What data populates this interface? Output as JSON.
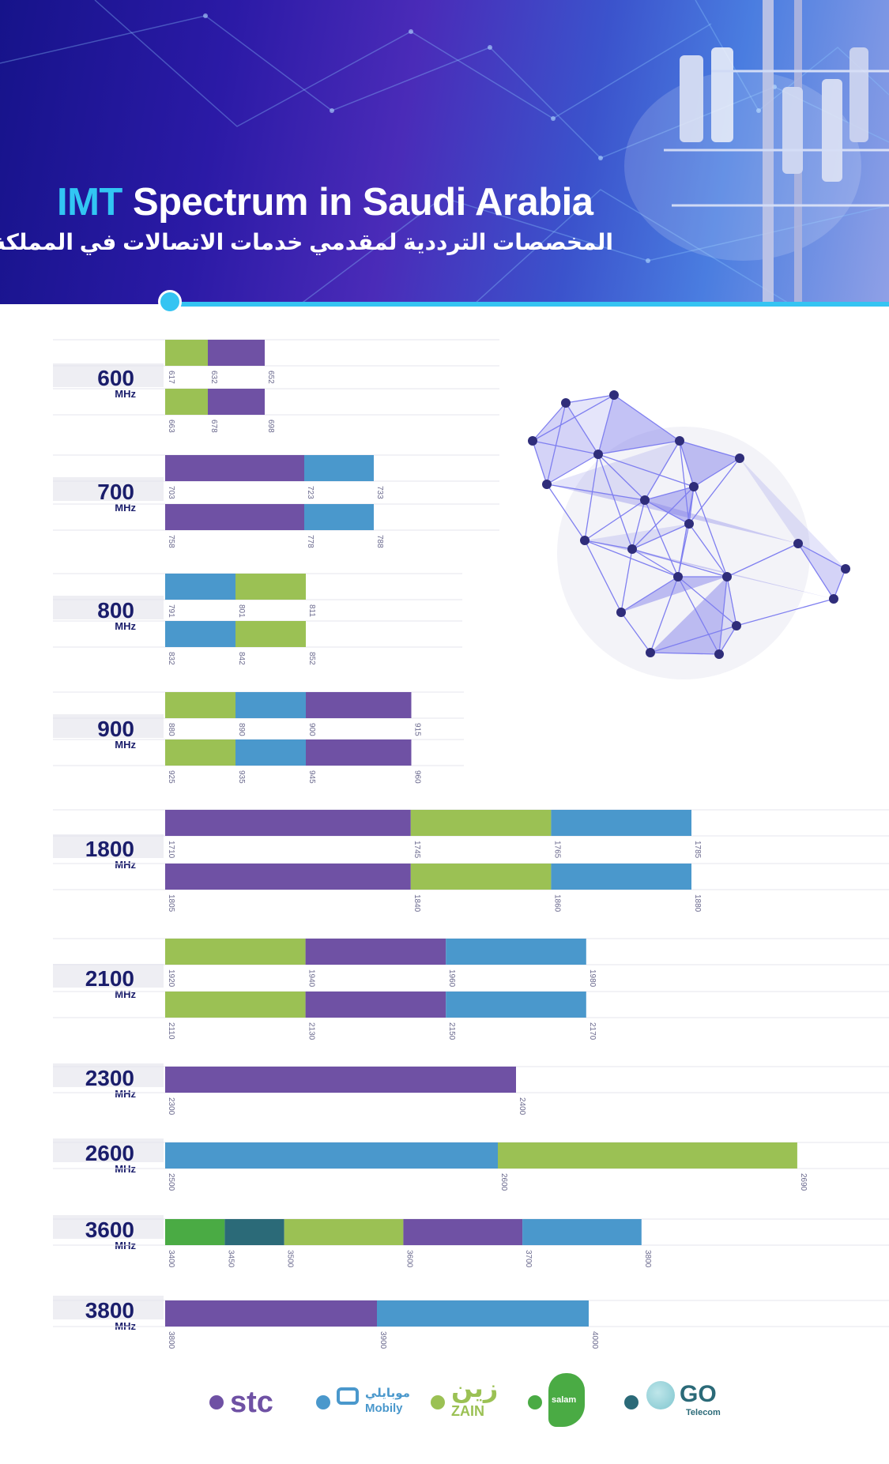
{
  "header": {
    "title_accent": "IMT",
    "title_rest": "Spectrum in Saudi Arabia",
    "subtitle": "المخصصات الترددية لمقدمي خدمات الاتصالات في المملكة"
  },
  "colors": {
    "stc": "#6f51a4",
    "mobily": "#4a98cc",
    "zain": "#9bc154",
    "salam": "#4aab44",
    "go": "#2b6a78",
    "label_navy": "#1a1d6b",
    "label_bg": "#eeeef3",
    "tick": "#6b6a8e"
  },
  "legend": [
    {
      "name": "stc",
      "text": "stc",
      "color": "#6f51a4"
    },
    {
      "name": "mobily",
      "text": "Mobily",
      "arabic": "موبايلي",
      "color": "#4a98cc"
    },
    {
      "name": "zain",
      "text": "ZAIN",
      "arabic": "زين",
      "color": "#9bc154"
    },
    {
      "name": "salam",
      "text": "salam",
      "color": "#4aab44"
    },
    {
      "name": "go",
      "text": "GO",
      "sub": "Telecom",
      "color": "#2b6a78"
    }
  ],
  "chart_data": {
    "type": "bar",
    "unit": "MHz",
    "bands": [
      {
        "label": "600",
        "unit": "MHz",
        "rows": [
          {
            "segments": [
              {
                "from": 617,
                "to": 632,
                "operator": "zain"
              },
              {
                "from": 632,
                "to": 652,
                "operator": "stc"
              }
            ],
            "ticks": [
              "617",
              "632",
              "652"
            ]
          },
          {
            "segments": [
              {
                "from": 663,
                "to": 678,
                "operator": "zain"
              },
              {
                "from": 678,
                "to": 698,
                "operator": "stc"
              }
            ],
            "ticks": [
              "663",
              "678",
              "698"
            ]
          }
        ]
      },
      {
        "label": "700",
        "unit": "MHz",
        "rows": [
          {
            "segments": [
              {
                "from": 703,
                "to": 723,
                "operator": "stc"
              },
              {
                "from": 723,
                "to": 733,
                "operator": "mobily"
              }
            ],
            "ticks": [
              "703",
              "723",
              "733"
            ]
          },
          {
            "segments": [
              {
                "from": 758,
                "to": 778,
                "operator": "stc"
              },
              {
                "from": 778,
                "to": 788,
                "operator": "mobily"
              }
            ],
            "ticks": [
              "758",
              "778",
              "788"
            ]
          }
        ]
      },
      {
        "label": "800",
        "unit": "MHz",
        "rows": [
          {
            "segments": [
              {
                "from": 791,
                "to": 801,
                "operator": "mobily"
              },
              {
                "from": 801,
                "to": 811,
                "operator": "zain"
              }
            ],
            "ticks": [
              "791",
              "801",
              "811"
            ]
          },
          {
            "segments": [
              {
                "from": 832,
                "to": 842,
                "operator": "mobily"
              },
              {
                "from": 842,
                "to": 852,
                "operator": "zain"
              }
            ],
            "ticks": [
              "832",
              "842",
              "852"
            ]
          }
        ]
      },
      {
        "label": "900",
        "unit": "MHz",
        "rows": [
          {
            "segments": [
              {
                "from": 880,
                "to": 890,
                "operator": "zain"
              },
              {
                "from": 890,
                "to": 900,
                "operator": "mobily"
              },
              {
                "from": 900,
                "to": 915,
                "operator": "stc"
              }
            ],
            "ticks": [
              "880",
              "890",
              "900",
              "915"
            ]
          },
          {
            "segments": [
              {
                "from": 925,
                "to": 935,
                "operator": "zain"
              },
              {
                "from": 935,
                "to": 945,
                "operator": "mobily"
              },
              {
                "from": 945,
                "to": 960,
                "operator": "stc"
              }
            ],
            "ticks": [
              "925",
              "935",
              "945",
              "960"
            ]
          }
        ]
      },
      {
        "label": "1800",
        "unit": "MHz",
        "rows": [
          {
            "segments": [
              {
                "from": 1710,
                "to": 1745,
                "operator": "stc"
              },
              {
                "from": 1745,
                "to": 1765,
                "operator": "zain"
              },
              {
                "from": 1765,
                "to": 1785,
                "operator": "mobily"
              }
            ],
            "ticks": [
              "1710",
              "1745",
              "1765",
              "1785"
            ]
          },
          {
            "segments": [
              {
                "from": 1805,
                "to": 1840,
                "operator": "stc"
              },
              {
                "from": 1840,
                "to": 1860,
                "operator": "zain"
              },
              {
                "from": 1860,
                "to": 1880,
                "operator": "mobily"
              }
            ],
            "ticks": [
              "1805",
              "1840",
              "1860",
              "1880"
            ]
          }
        ]
      },
      {
        "label": "2100",
        "unit": "MHz",
        "rows": [
          {
            "segments": [
              {
                "from": 1920,
                "to": 1940,
                "operator": "zain"
              },
              {
                "from": 1940,
                "to": 1960,
                "operator": "stc"
              },
              {
                "from": 1960,
                "to": 1980,
                "operator": "mobily"
              }
            ],
            "ticks": [
              "1920",
              "1940",
              "1960",
              "1980"
            ]
          },
          {
            "segments": [
              {
                "from": 2110,
                "to": 2130,
                "operator": "zain"
              },
              {
                "from": 2130,
                "to": 2150,
                "operator": "stc"
              },
              {
                "from": 2150,
                "to": 2170,
                "operator": "mobily"
              }
            ],
            "ticks": [
              "2110",
              "2130",
              "2150",
              "2170"
            ]
          }
        ]
      },
      {
        "label": "2300",
        "unit": "MHz",
        "rows": [
          {
            "segments": [
              {
                "from": 2300,
                "to": 2400,
                "operator": "stc"
              }
            ],
            "ticks": [
              "2300",
              "2400"
            ]
          }
        ]
      },
      {
        "label": "2600",
        "unit": "MHz",
        "rows": [
          {
            "segments": [
              {
                "from": 2500,
                "to": 2600,
                "operator": "mobily"
              },
              {
                "from": 2600,
                "to": 2690,
                "operator": "zain"
              }
            ],
            "ticks": [
              "2500",
              "2600",
              "2690"
            ]
          }
        ]
      },
      {
        "label": "3600",
        "unit": "MHz",
        "rows": [
          {
            "segments": [
              {
                "from": 3400,
                "to": 3450,
                "operator": "salam"
              },
              {
                "from": 3450,
                "to": 3500,
                "operator": "go"
              },
              {
                "from": 3500,
                "to": 3600,
                "operator": "zain"
              },
              {
                "from": 3600,
                "to": 3700,
                "operator": "stc"
              },
              {
                "from": 3700,
                "to": 3800,
                "operator": "mobily"
              }
            ],
            "ticks": [
              "3400",
              "3450",
              "3500",
              "3600",
              "3700",
              "3800"
            ]
          }
        ]
      },
      {
        "label": "3800",
        "unit": "MHz",
        "rows": [
          {
            "segments": [
              {
                "from": 3800,
                "to": 3900,
                "operator": "stc"
              },
              {
                "from": 3900,
                "to": 4000,
                "operator": "mobily"
              }
            ],
            "ticks": [
              "3800",
              "3900",
              "4000"
            ]
          }
        ]
      }
    ]
  }
}
